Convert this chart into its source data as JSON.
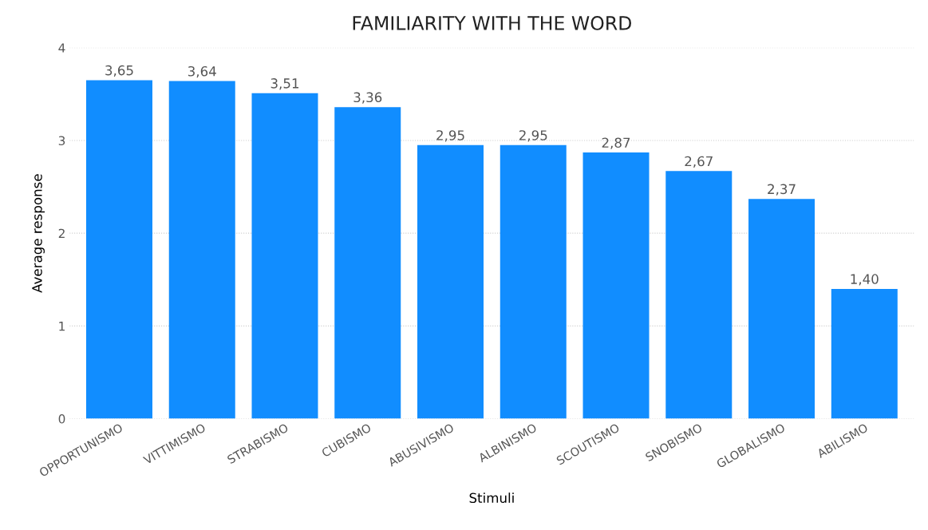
{
  "chart_data": {
    "type": "bar",
    "title": "FAMILIARITY WITH THE WORD",
    "xlabel": "Stimuli",
    "ylabel": "Average response",
    "categories": [
      "OPPORTUNISMO",
      "VITTIMISMO",
      "STRABISMO",
      "CUBISMO",
      "ABUSIVISMO",
      "ALBINISMO",
      "SCOUTISMO",
      "SNOBISMO",
      "GLOBALISMO",
      "ABILISMO"
    ],
    "values": [
      3.65,
      3.64,
      3.51,
      3.36,
      2.95,
      2.95,
      2.87,
      2.67,
      2.37,
      1.4
    ],
    "value_labels": [
      "3,65",
      "3,64",
      "3,51",
      "3,36",
      "2,95",
      "2,95",
      "2,87",
      "2,67",
      "2,37",
      "1,40"
    ],
    "color": "#118dff",
    "ylim": [
      0,
      4
    ],
    "yticks": [
      0,
      1,
      2,
      3,
      4
    ],
    "grid": "y"
  }
}
